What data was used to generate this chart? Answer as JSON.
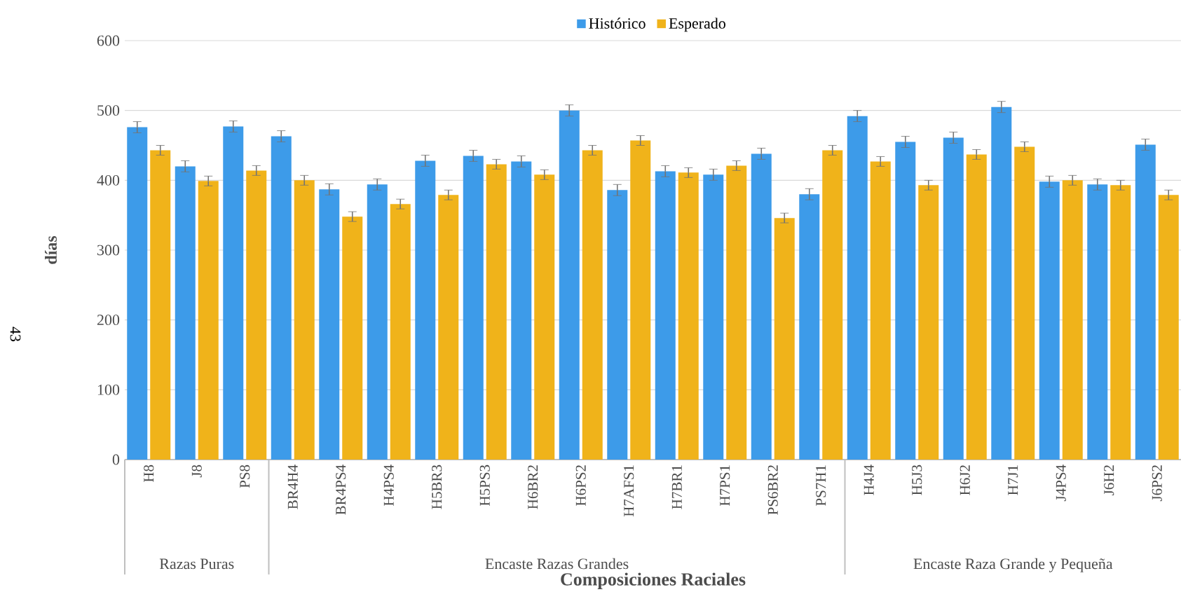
{
  "chart_data": {
    "type": "bar",
    "xlabel": "Composiciones Raciales",
    "ylabel": "días",
    "categories": [
      "H8",
      "J8",
      "PS8",
      "BR4H4",
      "BR4PS4",
      "H4PS4",
      "H5BR3",
      "H5PS3",
      "H6BR2",
      "H6PS2",
      "H7AFS1",
      "H7BR1",
      "H7PS1",
      "PS6BR2",
      "PS7H1",
      "H4J4",
      "H5J3",
      "H6J2",
      "H7J1",
      "J4PS4",
      "J6H2",
      "J6PS2"
    ],
    "series": [
      {
        "name": "Histórico",
        "color": "#3d9be9",
        "values": [
          476,
          420,
          477,
          463,
          387,
          394,
          428,
          435,
          427,
          500,
          386,
          413,
          408,
          438,
          380,
          492,
          455,
          461,
          505,
          398,
          394,
          451
        ],
        "errors": [
          8,
          8,
          8,
          8,
          8,
          8,
          8,
          8,
          8,
          8,
          8,
          8,
          8,
          8,
          8,
          8,
          8,
          8,
          8,
          8,
          8,
          8
        ]
      },
      {
        "name": "Esperado",
        "color": "#f0b31a",
        "values": [
          443,
          399,
          414,
          400,
          348,
          366,
          379,
          423,
          408,
          443,
          457,
          411,
          421,
          346,
          443,
          427,
          393,
          437,
          448,
          400,
          393,
          379
        ],
        "errors": [
          7,
          7,
          7,
          7,
          7,
          7,
          7,
          7,
          7,
          7,
          7,
          7,
          7,
          7,
          7,
          7,
          7,
          7,
          7,
          7,
          7,
          7
        ]
      }
    ],
    "ylim": [
      0,
      600
    ],
    "yticks": [
      0,
      100,
      200,
      300,
      400,
      500,
      600
    ],
    "grid": "y",
    "legend": "top",
    "annotations": [
      "Razas Puras",
      "Encaste Razas Grandes",
      "Encaste Raza Grande y Pequeña",
      "43"
    ]
  }
}
